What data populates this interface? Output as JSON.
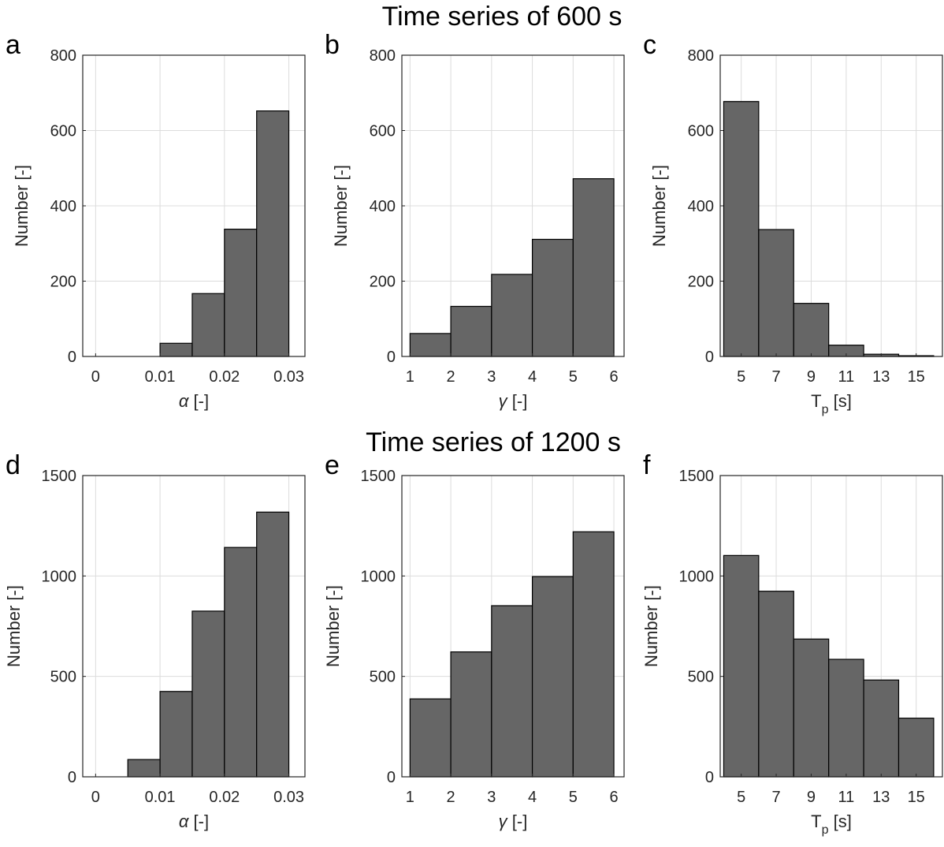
{
  "rows": [
    {
      "title": "Time series of 600 s"
    },
    {
      "title": "Time series of 1200 s"
    }
  ],
  "chart_data": [
    {
      "panel": "a",
      "type": "bar",
      "bin_edges": [
        0,
        0.005,
        0.01,
        0.015,
        0.02,
        0.025,
        0.03
      ],
      "values": [
        0,
        0,
        35,
        167,
        338,
        652
      ],
      "xlim": [
        -0.002,
        0.0325
      ],
      "ylim": [
        0,
        800
      ],
      "xticks": [
        0,
        0.01,
        0.02,
        0.03
      ],
      "xtick_labels": [
        "0",
        "0.01",
        "0.02",
        "0.03"
      ],
      "yticks": [
        0,
        200,
        400,
        600,
        800
      ],
      "ytick_labels": [
        "0",
        "200",
        "400",
        "600",
        "800"
      ],
      "xlabel_symbol": "α",
      "xlabel_unit": " [-]",
      "xlabel_sub": "",
      "ylabel": "Number [-]",
      "grid": true
    },
    {
      "panel": "b",
      "type": "bar",
      "bin_edges": [
        1,
        2,
        3,
        4,
        5,
        6
      ],
      "values": [
        61,
        133,
        218,
        311,
        472
      ],
      "xlim": [
        0.8,
        6.25
      ],
      "ylim": [
        0,
        800
      ],
      "xticks": [
        1,
        2,
        3,
        4,
        5,
        6
      ],
      "xtick_labels": [
        "1",
        "2",
        "3",
        "4",
        "5",
        "6"
      ],
      "yticks": [
        0,
        200,
        400,
        600,
        800
      ],
      "ytick_labels": [
        "0",
        "200",
        "400",
        "600",
        "800"
      ],
      "xlabel_symbol": "γ",
      "xlabel_unit": " [-]",
      "xlabel_sub": "",
      "ylabel": "Number [-]",
      "grid": true
    },
    {
      "panel": "c",
      "type": "bar",
      "bin_edges": [
        4,
        6,
        8,
        10,
        12,
        14,
        16
      ],
      "values": [
        677,
        337,
        141,
        30,
        6,
        2
      ],
      "xlim": [
        3.8,
        16.5
      ],
      "ylim": [
        0,
        800
      ],
      "xticks": [
        5,
        7,
        9,
        11,
        13,
        15
      ],
      "xtick_labels": [
        "5",
        "7",
        "9",
        "11",
        "13",
        "15"
      ],
      "yticks": [
        0,
        200,
        400,
        600,
        800
      ],
      "ytick_labels": [
        "0",
        "200",
        "400",
        "600",
        "800"
      ],
      "xlabel_symbol": "T",
      "xlabel_unit": " [s]",
      "xlabel_sub": "p",
      "ylabel": "Number [-]",
      "grid": true
    },
    {
      "panel": "d",
      "type": "bar",
      "bin_edges": [
        0,
        0.005,
        0.01,
        0.015,
        0.02,
        0.025,
        0.03
      ],
      "values": [
        0,
        86,
        425,
        825,
        1142,
        1318
      ],
      "xlim": [
        -0.002,
        0.0325
      ],
      "ylim": [
        0,
        1500
      ],
      "xticks": [
        0,
        0.01,
        0.02,
        0.03
      ],
      "xtick_labels": [
        "0",
        "0.01",
        "0.02",
        "0.03"
      ],
      "yticks": [
        0,
        500,
        1000,
        1500
      ],
      "ytick_labels": [
        "0",
        "500",
        "1000",
        "1500"
      ],
      "xlabel_symbol": "α",
      "xlabel_unit": " [-]",
      "xlabel_sub": "",
      "ylabel": "Number [-]",
      "grid": true
    },
    {
      "panel": "e",
      "type": "bar",
      "bin_edges": [
        1,
        2,
        3,
        4,
        5,
        6
      ],
      "values": [
        388,
        622,
        852,
        997,
        1220
      ],
      "xlim": [
        0.8,
        6.25
      ],
      "ylim": [
        0,
        1500
      ],
      "xticks": [
        1,
        2,
        3,
        4,
        5,
        6
      ],
      "xtick_labels": [
        "1",
        "2",
        "3",
        "4",
        "5",
        "6"
      ],
      "yticks": [
        0,
        500,
        1000,
        1500
      ],
      "ytick_labels": [
        "0",
        "500",
        "1000",
        "1500"
      ],
      "xlabel_symbol": "γ",
      "xlabel_unit": " [-]",
      "xlabel_sub": "",
      "ylabel": "Number [-]",
      "grid": true
    },
    {
      "panel": "f",
      "type": "bar",
      "bin_edges": [
        4,
        6,
        8,
        10,
        12,
        14,
        16
      ],
      "values": [
        1102,
        924,
        686,
        585,
        482,
        292
      ],
      "xlim": [
        3.8,
        16.5
      ],
      "ylim": [
        0,
        1500
      ],
      "xticks": [
        5,
        7,
        9,
        11,
        13,
        15
      ],
      "xtick_labels": [
        "5",
        "7",
        "9",
        "11",
        "13",
        "15"
      ],
      "yticks": [
        0,
        500,
        1000,
        1500
      ],
      "ytick_labels": [
        "0",
        "500",
        "1000",
        "1500"
      ],
      "xlabel_symbol": "T",
      "xlabel_unit": " [s]",
      "xlabel_sub": "p",
      "ylabel": "Number [-]",
      "grid": true
    }
  ]
}
